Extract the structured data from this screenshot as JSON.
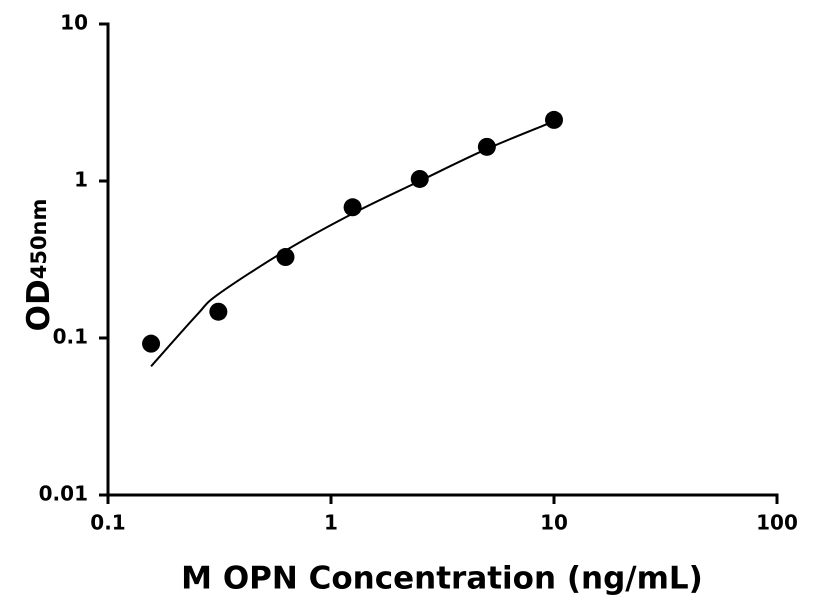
{
  "chart_data": {
    "type": "scatter",
    "x_label": "M OPN Concentration (ng/mL)",
    "y_label": {
      "text": "OD",
      "subscript": "450nm"
    },
    "log_x": true,
    "log_y": true,
    "xlim": [
      0.1,
      100
    ],
    "xticks": [
      0.1,
      1,
      10,
      100
    ],
    "ylim": [
      0.01,
      10
    ],
    "yticks": [
      0.01,
      0.1,
      1,
      10
    ],
    "series": [
      {
        "color": "#000000",
        "marker": "circle",
        "x": [
          0.156,
          0.3125,
          0.625,
          1.25,
          2.5,
          5,
          10
        ],
        "values": [
          0.092,
          0.147,
          0.328,
          0.68,
          1.03,
          1.65,
          2.45
        ]
      },
      {
        "color": "#000000",
        "marker": "line",
        "x": [
          0.156,
          0.25,
          0.3125,
          0.625,
          1.25,
          2.5,
          5,
          10
        ],
        "values": [
          0.066,
          0.14,
          0.19,
          0.36,
          0.62,
          1.0,
          1.6,
          2.4
        ]
      }
    ]
  }
}
